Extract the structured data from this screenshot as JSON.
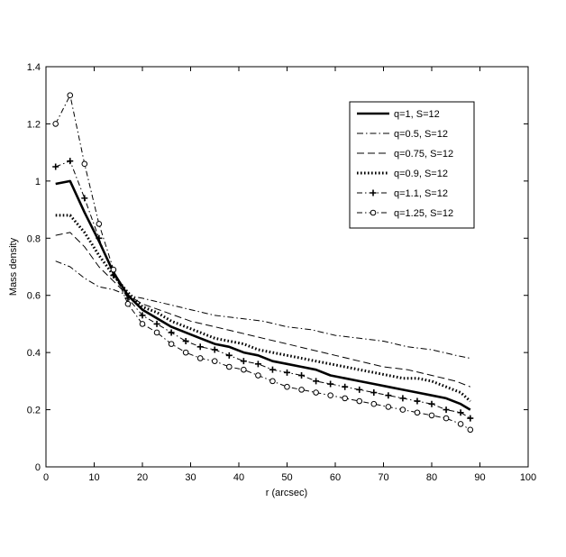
{
  "chart_data": {
    "type": "line",
    "title": "",
    "xlabel": "r (arcsec)",
    "ylabel": "Mass density",
    "xlim": [
      0,
      100
    ],
    "ylim": [
      0,
      1.4
    ],
    "xticks": [
      "0",
      "10",
      "20",
      "30",
      "40",
      "50",
      "60",
      "70",
      "80",
      "90",
      "100"
    ],
    "yticks": [
      "0",
      "0.2",
      "0.4",
      "0.6",
      "0.8",
      "1",
      "1.2",
      "1.4"
    ],
    "grid": false,
    "legend_position": "top-right",
    "series": [
      {
        "name": "q=1, S=12",
        "style": "solid-thick",
        "x": [
          2,
          5,
          8,
          11,
          14,
          17,
          20,
          23,
          26,
          29,
          32,
          35,
          38,
          41,
          44,
          47,
          50,
          53,
          56,
          59,
          62,
          65,
          68,
          71,
          74,
          77,
          80,
          83,
          86,
          88
        ],
        "y": [
          0.99,
          1.0,
          0.89,
          0.79,
          0.68,
          0.6,
          0.55,
          0.52,
          0.49,
          0.47,
          0.45,
          0.43,
          0.42,
          0.4,
          0.39,
          0.37,
          0.36,
          0.35,
          0.34,
          0.32,
          0.31,
          0.3,
          0.29,
          0.28,
          0.27,
          0.26,
          0.25,
          0.24,
          0.22,
          0.2
        ]
      },
      {
        "name": "q=0.5, S=12",
        "style": "dash-dot",
        "x": [
          2,
          5,
          8,
          11,
          14,
          17,
          20,
          25,
          30,
          35,
          40,
          45,
          50,
          55,
          60,
          65,
          70,
          75,
          80,
          85,
          88
        ],
        "y": [
          0.72,
          0.7,
          0.66,
          0.63,
          0.62,
          0.6,
          0.59,
          0.57,
          0.55,
          0.53,
          0.52,
          0.51,
          0.49,
          0.48,
          0.46,
          0.45,
          0.44,
          0.42,
          0.41,
          0.39,
          0.38
        ]
      },
      {
        "name": "q=0.75, S=12",
        "style": "dashed",
        "x": [
          2,
          5,
          8,
          11,
          14,
          17,
          20,
          25,
          30,
          35,
          40,
          45,
          50,
          55,
          60,
          65,
          70,
          75,
          80,
          85,
          88
        ],
        "y": [
          0.81,
          0.82,
          0.77,
          0.7,
          0.65,
          0.6,
          0.57,
          0.54,
          0.51,
          0.49,
          0.47,
          0.45,
          0.43,
          0.41,
          0.39,
          0.37,
          0.35,
          0.34,
          0.32,
          0.3,
          0.28
        ]
      },
      {
        "name": "q=0.9, S=12",
        "style": "dotted-thick",
        "x": [
          2,
          5,
          8,
          11,
          14,
          17,
          20,
          23,
          26,
          29,
          32,
          35,
          38,
          41,
          44,
          47,
          50,
          53,
          56,
          59,
          62,
          65,
          68,
          71,
          74,
          77,
          80,
          83,
          86,
          88
        ],
        "y": [
          0.88,
          0.88,
          0.82,
          0.74,
          0.67,
          0.61,
          0.56,
          0.54,
          0.51,
          0.49,
          0.47,
          0.45,
          0.44,
          0.43,
          0.41,
          0.4,
          0.39,
          0.38,
          0.37,
          0.36,
          0.35,
          0.34,
          0.33,
          0.32,
          0.31,
          0.31,
          0.3,
          0.28,
          0.26,
          0.23
        ]
      },
      {
        "name": "q=1.1, S=12",
        "style": "dash-dot-plus",
        "x": [
          2,
          5,
          8,
          11,
          14,
          17,
          20,
          23,
          26,
          29,
          32,
          35,
          38,
          41,
          44,
          47,
          50,
          53,
          56,
          59,
          62,
          65,
          68,
          71,
          74,
          77,
          80,
          83,
          86,
          88
        ],
        "y": [
          1.05,
          1.07,
          0.94,
          0.8,
          0.67,
          0.59,
          0.53,
          0.5,
          0.47,
          0.44,
          0.42,
          0.41,
          0.39,
          0.37,
          0.36,
          0.34,
          0.33,
          0.32,
          0.3,
          0.29,
          0.28,
          0.27,
          0.26,
          0.25,
          0.24,
          0.23,
          0.22,
          0.2,
          0.19,
          0.17
        ]
      },
      {
        "name": "q=1.25, S=12",
        "style": "dash-dot-circle",
        "x": [
          2,
          5,
          8,
          11,
          14,
          17,
          20,
          23,
          26,
          29,
          32,
          35,
          38,
          41,
          44,
          47,
          50,
          53,
          56,
          59,
          62,
          65,
          68,
          71,
          74,
          77,
          80,
          83,
          86,
          88
        ],
        "y": [
          1.2,
          1.3,
          1.06,
          0.85,
          0.69,
          0.57,
          0.5,
          0.47,
          0.43,
          0.4,
          0.38,
          0.37,
          0.35,
          0.34,
          0.32,
          0.3,
          0.28,
          0.27,
          0.26,
          0.25,
          0.24,
          0.23,
          0.22,
          0.21,
          0.2,
          0.19,
          0.18,
          0.17,
          0.15,
          0.13
        ]
      }
    ]
  }
}
